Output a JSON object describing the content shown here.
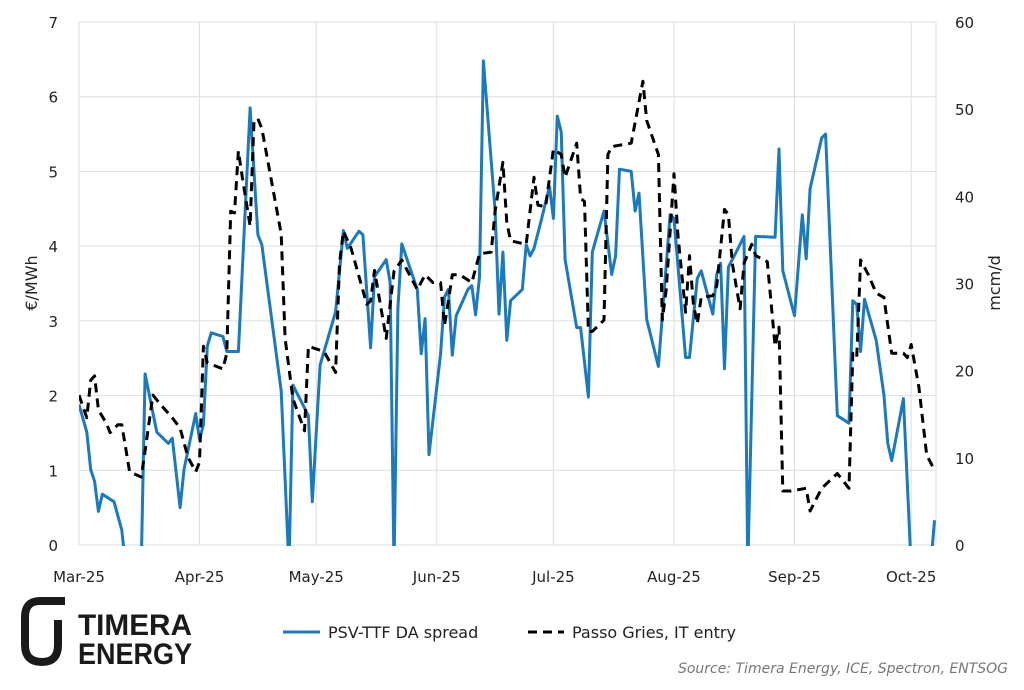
{
  "chart_data": {
    "type": "line",
    "title": "",
    "xlabel": "",
    "ylabel": "€/MWh",
    "y2label": "mcm/d",
    "ylim": [
      0,
      7
    ],
    "y2lim": [
      0,
      60
    ],
    "yticks": [
      "0",
      "1",
      "2",
      "3",
      "4",
      "5",
      "6",
      "7"
    ],
    "y2ticks": [
      "0",
      "10",
      "20",
      "30",
      "40",
      "50",
      "60"
    ],
    "xticks": [
      {
        "date": "2025-03-01",
        "label": "Mar-25"
      },
      {
        "date": "2025-04-01",
        "label": "Apr-25"
      },
      {
        "date": "2025-05-01",
        "label": "May-25"
      },
      {
        "date": "2025-06-01",
        "label": "Jun-25"
      },
      {
        "date": "2025-07-01",
        "label": "Jul-25"
      },
      {
        "date": "2025-08-01",
        "label": "Aug-25"
      },
      {
        "date": "2025-09-01",
        "label": "Sep-25"
      },
      {
        "date": "2025-10-01",
        "label": "Oct-25"
      }
    ],
    "xlim": [
      "2025-03-01",
      "2025-10-07"
    ],
    "grid": true,
    "legend_position": "bottom",
    "series": [
      {
        "name": "PSV-TTF DA spread",
        "axis": "left",
        "color": "#1a7abf",
        "style": "solid",
        "points": [
          [
            "2025-03-01",
            1.88
          ],
          [
            "2025-03-03",
            1.51
          ],
          [
            "2025-03-04",
            1.01
          ],
          [
            "2025-03-05",
            0.85
          ],
          [
            "2025-03-06",
            0.45
          ],
          [
            "2025-03-07",
            0.68
          ],
          [
            "2025-03-10",
            0.58
          ],
          [
            "2025-03-12",
            0.2
          ],
          [
            "2025-03-13",
            -0.3
          ],
          [
            "2025-03-17",
            -0.3
          ],
          [
            "2025-03-18",
            2.29
          ],
          [
            "2025-03-21",
            1.51
          ],
          [
            "2025-03-24",
            1.36
          ],
          [
            "2025-03-25",
            1.43
          ],
          [
            "2025-03-27",
            0.5
          ],
          [
            "2025-03-28",
            1.01
          ],
          [
            "2025-03-31",
            1.76
          ],
          [
            "2025-04-01",
            1.41
          ],
          [
            "2025-04-02",
            1.61
          ],
          [
            "2025-04-03",
            2.66
          ],
          [
            "2025-04-04",
            2.84
          ],
          [
            "2025-04-07",
            2.79
          ],
          [
            "2025-04-08",
            2.59
          ],
          [
            "2025-04-11",
            2.59
          ],
          [
            "2025-04-14",
            5.85
          ],
          [
            "2025-04-16",
            4.15
          ],
          [
            "2025-04-17",
            4.02
          ],
          [
            "2025-04-22",
            2.06
          ],
          [
            "2025-04-24",
            -0.3
          ],
          [
            "2025-04-25",
            2.14
          ],
          [
            "2025-04-29",
            1.73
          ],
          [
            "2025-04-30",
            0.58
          ],
          [
            "2025-05-02",
            2.41
          ],
          [
            "2025-05-06",
            3.12
          ],
          [
            "2025-05-08",
            4.21
          ],
          [
            "2025-05-09",
            3.97
          ],
          [
            "2025-05-12",
            4.2
          ],
          [
            "2025-05-13",
            4.15
          ],
          [
            "2025-05-15",
            2.64
          ],
          [
            "2025-05-16",
            3.59
          ],
          [
            "2025-05-19",
            3.82
          ],
          [
            "2025-05-20",
            3.52
          ],
          [
            "2025-05-21",
            -0.3
          ],
          [
            "2025-05-22",
            3.17
          ],
          [
            "2025-05-23",
            4.03
          ],
          [
            "2025-05-27",
            3.42
          ],
          [
            "2025-05-28",
            2.56
          ],
          [
            "2025-05-29",
            3.03
          ],
          [
            "2025-05-30",
            1.21
          ],
          [
            "2025-06-02",
            2.56
          ],
          [
            "2025-06-03",
            3.32
          ],
          [
            "2025-06-04",
            3.42
          ],
          [
            "2025-06-05",
            2.54
          ],
          [
            "2025-06-06",
            3.07
          ],
          [
            "2025-06-09",
            3.42
          ],
          [
            "2025-06-10",
            3.47
          ],
          [
            "2025-06-11",
            3.08
          ],
          [
            "2025-06-12",
            3.59
          ],
          [
            "2025-06-13",
            6.48
          ],
          [
            "2025-06-16",
            4.47
          ],
          [
            "2025-06-17",
            3.09
          ],
          [
            "2025-06-18",
            3.92
          ],
          [
            "2025-06-19",
            2.74
          ],
          [
            "2025-06-20",
            3.27
          ],
          [
            "2025-06-23",
            3.42
          ],
          [
            "2025-06-24",
            4.02
          ],
          [
            "2025-06-25",
            3.87
          ],
          [
            "2025-06-26",
            3.97
          ],
          [
            "2025-06-28",
            4.37
          ],
          [
            "2025-06-30",
            4.8
          ],
          [
            "2025-07-01",
            4.37
          ],
          [
            "2025-07-02",
            5.74
          ],
          [
            "2025-07-03",
            5.53
          ],
          [
            "2025-07-04",
            3.82
          ],
          [
            "2025-07-07",
            2.91
          ],
          [
            "2025-07-08",
            2.91
          ],
          [
            "2025-07-10",
            1.98
          ],
          [
            "2025-07-11",
            3.92
          ],
          [
            "2025-07-14",
            4.47
          ],
          [
            "2025-07-16",
            3.62
          ],
          [
            "2025-07-17",
            3.87
          ],
          [
            "2025-07-18",
            5.03
          ],
          [
            "2025-07-21",
            5.0
          ],
          [
            "2025-07-22",
            4.47
          ],
          [
            "2025-07-23",
            4.71
          ],
          [
            "2025-07-25",
            3.02
          ],
          [
            "2025-07-28",
            2.39
          ],
          [
            "2025-07-31",
            4.42
          ],
          [
            "2025-08-01",
            4.37
          ],
          [
            "2025-08-04",
            2.51
          ],
          [
            "2025-08-05",
            2.51
          ],
          [
            "2025-08-07",
            3.57
          ],
          [
            "2025-08-08",
            3.67
          ],
          [
            "2025-08-11",
            3.09
          ],
          [
            "2025-08-12",
            3.62
          ],
          [
            "2025-08-13",
            3.77
          ],
          [
            "2025-08-14",
            2.36
          ],
          [
            "2025-08-15",
            3.72
          ],
          [
            "2025-08-17",
            3.92
          ],
          [
            "2025-08-19",
            4.13
          ],
          [
            "2025-08-20",
            -0.3
          ],
          [
            "2025-08-22",
            4.13
          ],
          [
            "2025-08-27",
            4.12
          ],
          [
            "2025-08-28",
            5.3
          ],
          [
            "2025-08-29",
            3.67
          ],
          [
            "2025-09-01",
            3.07
          ],
          [
            "2025-09-03",
            4.42
          ],
          [
            "2025-09-04",
            3.83
          ],
          [
            "2025-09-05",
            4.77
          ],
          [
            "2025-09-08",
            5.45
          ],
          [
            "2025-09-09",
            5.5
          ],
          [
            "2025-09-12",
            1.73
          ],
          [
            "2025-09-15",
            1.63
          ],
          [
            "2025-09-16",
            3.27
          ],
          [
            "2025-09-17",
            3.22
          ],
          [
            "2025-09-18",
            2.59
          ],
          [
            "2025-09-19",
            3.29
          ],
          [
            "2025-09-22",
            2.74
          ],
          [
            "2025-09-24",
            2.01
          ],
          [
            "2025-09-25",
            1.36
          ],
          [
            "2025-09-26",
            1.13
          ],
          [
            "2025-09-29",
            1.96
          ],
          [
            "2025-10-01",
            -0.3
          ],
          [
            "2025-10-06",
            -0.3
          ],
          [
            "2025-10-07",
            0.33
          ]
        ]
      },
      {
        "name": "Passo Gries, IT entry",
        "axis": "right",
        "color": "#000000",
        "style": "dashed",
        "points": [
          [
            "2025-03-01",
            17.2
          ],
          [
            "2025-03-03",
            14.6
          ],
          [
            "2025-03-04",
            18.9
          ],
          [
            "2025-03-05",
            19.4
          ],
          [
            "2025-03-06",
            15.5
          ],
          [
            "2025-03-08",
            14.0
          ],
          [
            "2025-03-09",
            12.9
          ],
          [
            "2025-03-11",
            13.8
          ],
          [
            "2025-03-12",
            13.8
          ],
          [
            "2025-03-14",
            8.4
          ],
          [
            "2025-03-17",
            7.8
          ],
          [
            "2025-03-18",
            10.8
          ],
          [
            "2025-03-20",
            17.2
          ],
          [
            "2025-03-22",
            16.1
          ],
          [
            "2025-03-25",
            14.6
          ],
          [
            "2025-03-27",
            13.4
          ],
          [
            "2025-03-29",
            10.1
          ],
          [
            "2025-03-31",
            8.4
          ],
          [
            "2025-04-01",
            9.5
          ],
          [
            "2025-04-02",
            22.8
          ],
          [
            "2025-04-03",
            20.9
          ],
          [
            "2025-04-07",
            20.2
          ],
          [
            "2025-04-08",
            22.0
          ],
          [
            "2025-04-09",
            38.3
          ],
          [
            "2025-04-10",
            38.1
          ],
          [
            "2025-04-11",
            45.2
          ],
          [
            "2025-04-12",
            42.2
          ],
          [
            "2025-04-14",
            36.6
          ],
          [
            "2025-04-15",
            48.7
          ],
          [
            "2025-04-16",
            48.9
          ],
          [
            "2025-04-17",
            47.8
          ],
          [
            "2025-04-22",
            35.7
          ],
          [
            "2025-04-23",
            23.7
          ],
          [
            "2025-04-25",
            16.8
          ],
          [
            "2025-04-28",
            13.1
          ],
          [
            "2025-04-29",
            22.8
          ],
          [
            "2025-05-03",
            22.2
          ],
          [
            "2025-05-06",
            19.8
          ],
          [
            "2025-05-07",
            32.3
          ],
          [
            "2025-05-08",
            36.0
          ],
          [
            "2025-05-10",
            34.0
          ],
          [
            "2025-05-14",
            27.6
          ],
          [
            "2025-05-15",
            28.0
          ],
          [
            "2025-05-16",
            31.5
          ],
          [
            "2025-05-19",
            23.7
          ],
          [
            "2025-05-21",
            31.4
          ],
          [
            "2025-05-23",
            32.7
          ],
          [
            "2025-05-27",
            29.3
          ],
          [
            "2025-05-29",
            31.0
          ],
          [
            "2025-05-31",
            30.1
          ],
          [
            "2025-06-02",
            30.1
          ],
          [
            "2025-06-03",
            25.2
          ],
          [
            "2025-06-04",
            28.0
          ],
          [
            "2025-06-05",
            31.0
          ],
          [
            "2025-06-07",
            31.0
          ],
          [
            "2025-06-10",
            30.1
          ],
          [
            "2025-06-12",
            33.4
          ],
          [
            "2025-06-15",
            33.6
          ],
          [
            "2025-06-16",
            38.3
          ],
          [
            "2025-06-18",
            43.9
          ],
          [
            "2025-06-19",
            37.0
          ],
          [
            "2025-06-20",
            34.9
          ],
          [
            "2025-06-24",
            34.5
          ],
          [
            "2025-06-26",
            42.2
          ],
          [
            "2025-06-27",
            39.0
          ],
          [
            "2025-06-29",
            38.8
          ],
          [
            "2025-07-01",
            45.4
          ],
          [
            "2025-07-03",
            44.8
          ],
          [
            "2025-07-04",
            42.2
          ],
          [
            "2025-07-07",
            46.1
          ],
          [
            "2025-07-08",
            39.8
          ],
          [
            "2025-07-09",
            39.4
          ],
          [
            "2025-07-10",
            24.5
          ],
          [
            "2025-07-11",
            24.5
          ],
          [
            "2025-07-14",
            25.8
          ],
          [
            "2025-07-15",
            44.8
          ],
          [
            "2025-07-16",
            45.7
          ],
          [
            "2025-07-21",
            46.1
          ],
          [
            "2025-07-24",
            53.2
          ],
          [
            "2025-07-25",
            48.7
          ],
          [
            "2025-07-28",
            44.8
          ],
          [
            "2025-07-29",
            25.8
          ],
          [
            "2025-07-30",
            29.3
          ],
          [
            "2025-08-01",
            42.6
          ],
          [
            "2025-08-02",
            35.7
          ],
          [
            "2025-08-04",
            26.7
          ],
          [
            "2025-08-05",
            33.2
          ],
          [
            "2025-08-06",
            27.6
          ],
          [
            "2025-08-07",
            25.4
          ],
          [
            "2025-08-08",
            28.4
          ],
          [
            "2025-08-11",
            28.6
          ],
          [
            "2025-08-12",
            29.7
          ],
          [
            "2025-08-14",
            38.5
          ],
          [
            "2025-08-15",
            37.9
          ],
          [
            "2025-08-16",
            32.3
          ],
          [
            "2025-08-18",
            27.1
          ],
          [
            "2025-08-19",
            32.3
          ],
          [
            "2025-08-21",
            34.5
          ],
          [
            "2025-08-22",
            33.2
          ],
          [
            "2025-08-25",
            32.5
          ],
          [
            "2025-08-27",
            22.8
          ],
          [
            "2025-08-28",
            25.0
          ],
          [
            "2025-08-29",
            6.2
          ],
          [
            "2025-08-31",
            6.2
          ],
          [
            "2025-09-04",
            6.5
          ],
          [
            "2025-09-05",
            3.9
          ],
          [
            "2025-09-08",
            6.5
          ],
          [
            "2025-09-12",
            8.2
          ],
          [
            "2025-09-15",
            6.5
          ],
          [
            "2025-09-16",
            22.0
          ],
          [
            "2025-09-17",
            21.5
          ],
          [
            "2025-09-18",
            32.7
          ],
          [
            "2025-09-20",
            31.0
          ],
          [
            "2025-09-22",
            28.9
          ],
          [
            "2025-09-24",
            28.4
          ],
          [
            "2025-09-26",
            22.0
          ],
          [
            "2025-09-29",
            22.0
          ],
          [
            "2025-09-30",
            21.5
          ],
          [
            "2025-10-01",
            23.0
          ],
          [
            "2025-10-03",
            18.1
          ],
          [
            "2025-10-05",
            10.3
          ],
          [
            "2025-10-07",
            8.6
          ]
        ]
      }
    ]
  },
  "footer": {
    "source": "Source: Timera Energy, ICE, Spectron, ENTSOG",
    "logo_text": [
      "TIMERA",
      "ENERGY"
    ]
  }
}
